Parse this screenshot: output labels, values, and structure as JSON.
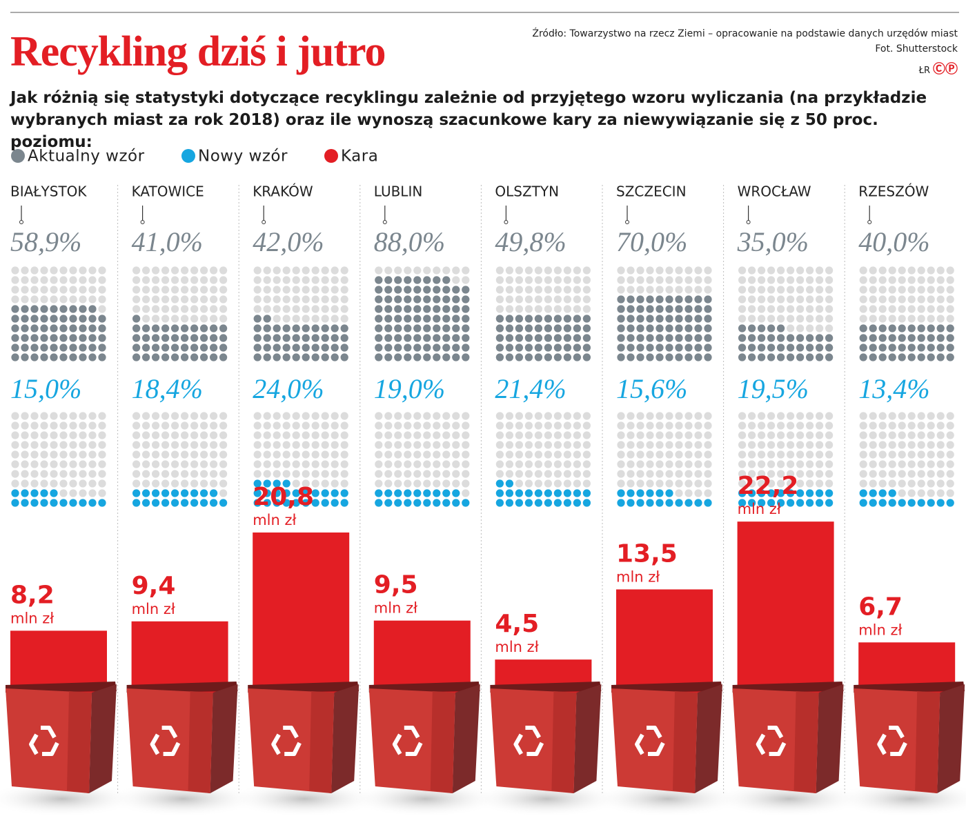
{
  "chart_data": {
    "type": "waffle",
    "title": "Recykling dziś i jutro",
    "subtitle": "Jak różnią się statystyki dotyczące recyklingu zależnie od przyjętego wzoru wyliczania (na przykładzie wybranych miast za rok 2018) oraz ile wynoszą szacunkowe kary za niewywiązanie się z 50 proc. poziomu:",
    "source": "Źródło: Towarzystwo na rzecz Ziemi – opracowanie na podstawie danych urzędów miast",
    "photo": "Fot. Shutterstock",
    "author": "ŁR",
    "logo": "ⒸⓅ",
    "categories": [
      "BIAŁYSTOK",
      "KATOWICE",
      "KRAKÓW",
      "LUBLIN",
      "OLSZTYN",
      "SZCZECIN",
      "WROCŁAW",
      "RZESZÓW"
    ],
    "series": [
      {
        "name": "Aktualny wzór",
        "color": "#7b868e",
        "values": [
          58.9,
          41.0,
          42.0,
          88.0,
          49.8,
          70.0,
          35.0,
          40.0
        ],
        "value_labels": [
          "58,9%",
          "41,0%",
          "42,0%",
          "88,0%",
          "49,8%",
          "70,0%",
          "35,0%",
          "40,0%"
        ]
      },
      {
        "name": "Nowy wzór",
        "color": "#16a6e0",
        "values": [
          15.0,
          18.4,
          24.0,
          19.0,
          21.4,
          15.6,
          19.5,
          13.4
        ],
        "value_labels": [
          "15,0%",
          "18,4%",
          "24,0%",
          "19,0%",
          "21,4%",
          "15,6%",
          "19,5%",
          "13,4%"
        ]
      },
      {
        "name": "Kara",
        "color": "#e31e24",
        "unit": "mln zł",
        "values": [
          8.2,
          9.4,
          20.8,
          9.5,
          4.5,
          13.5,
          22.2,
          6.7
        ],
        "value_labels": [
          "8,2",
          "9,4",
          "20,8",
          "9,5",
          "4,5",
          "13,5",
          "22,2",
          "6,7"
        ]
      }
    ]
  }
}
